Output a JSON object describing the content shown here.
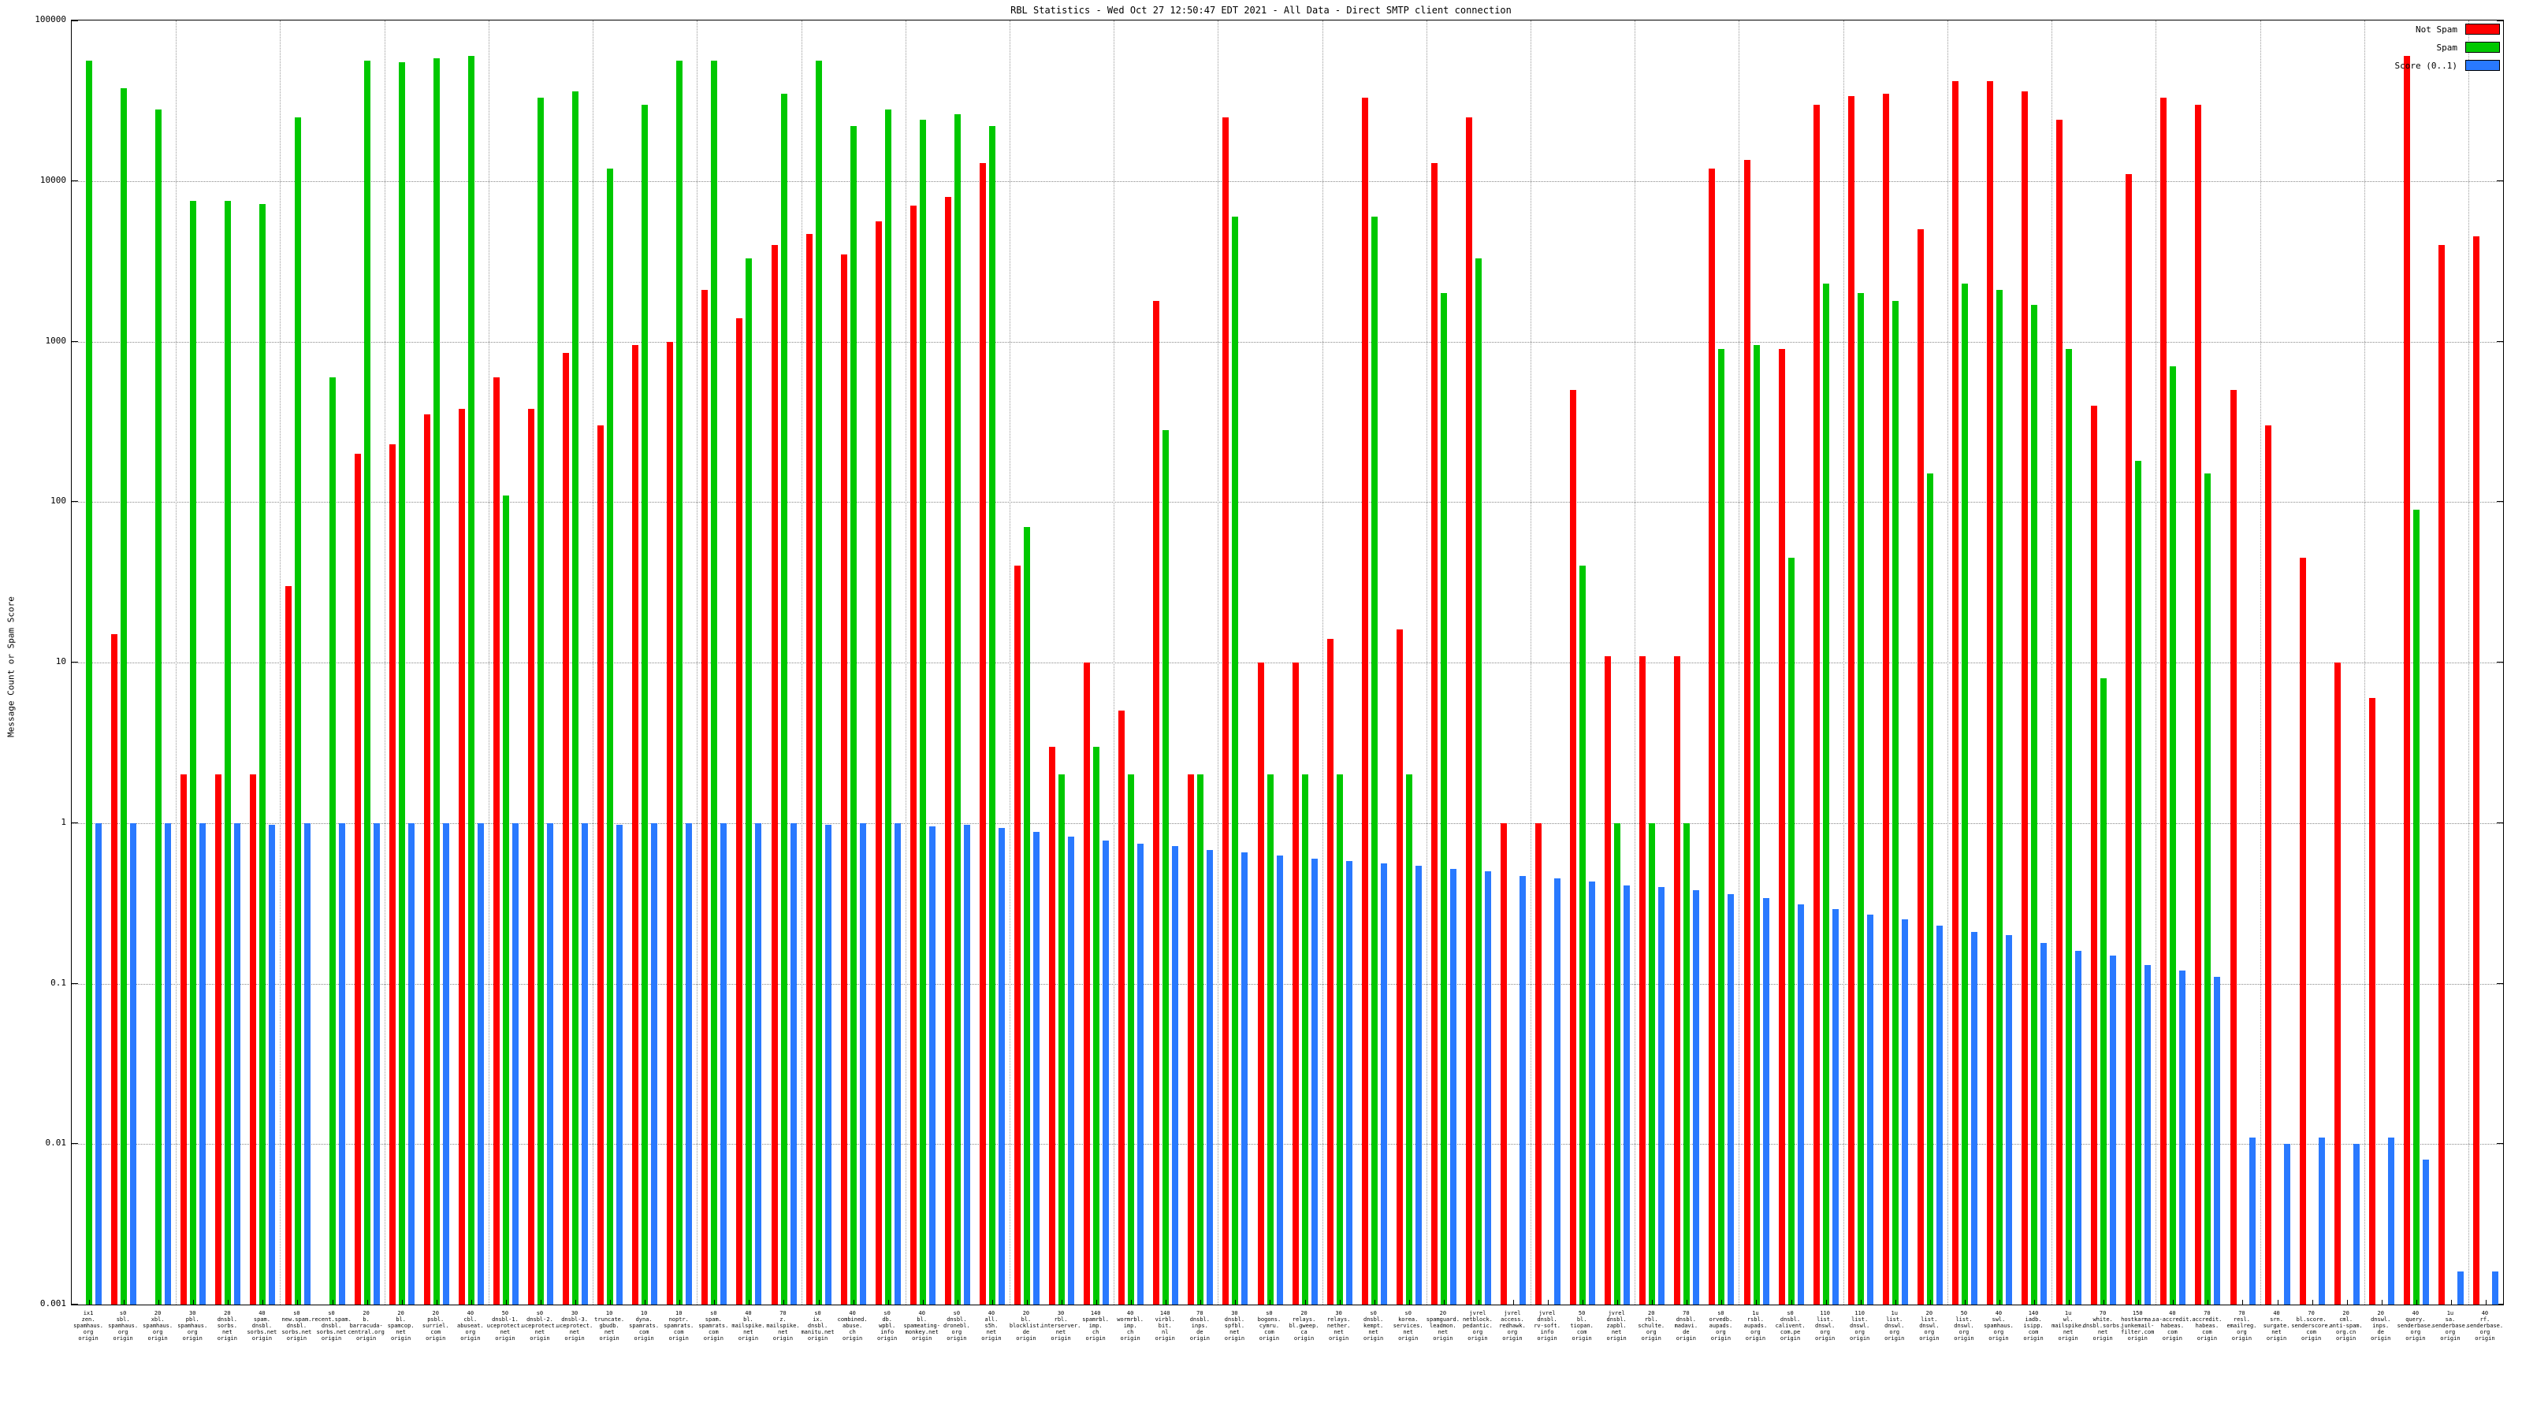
{
  "title": "RBL Statistics - Wed Oct 27 12:50:47 EDT 2021 - All Data - Direct SMTP client connection",
  "ylabel": "Message Count or Spam Score",
  "legend": [
    {
      "label": "Not Spam",
      "color": "#ff0000"
    },
    {
      "label": "Spam",
      "color": "#00c800"
    },
    {
      "label": "Score (0..1)",
      "color": "#2979ff"
    }
  ],
  "chart_data": {
    "type": "bar",
    "title": "RBL Statistics - Wed Oct 27 12:50:47 EDT 2021 - All Data - Direct SMTP client connection",
    "xlabel": "",
    "ylabel": "Message Count or Spam Score",
    "log_scale_y": true,
    "ylim": [
      0.001,
      100000
    ],
    "yticks": [
      "100000",
      "10000",
      "1000",
      "100",
      "10",
      "1",
      "0.1",
      "0.01",
      "0.001"
    ],
    "grid": "dotted",
    "legend_position": "top-right",
    "categories": [
      "ix1\nzen.\nspamhaus.\norg\norigin",
      "s0\nsbl.\nspamhaus.\norg\norigin",
      "20\nxbl.\nspamhaus.\norg\norigin",
      "30\npbl.\nspamhaus.\norg\norigin",
      "20\ndnsbl.\nsorbs.\nnet\norigin",
      "40\nspam.\ndnsbl.\nsorbs.net\norigin",
      "s0\nnew.spam.\ndnsbl.\nsorbs.net\norigin",
      "s0\nrecent.spam.\ndnsbl.\nsorbs.net\norigin",
      "20\nb.\nbarracuda-\ncentral.org\norigin",
      "20\nbl.\nspamcop.\nnet\norigin",
      "20\npsbl.\nsurriel.\ncom\norigin",
      "40\ncbl.\nabuseat.\norg\norigin",
      "50\ndnsbl-1.\nuceprotect.\nnet\norigin",
      "s0\ndnsbl-2.\nuceprotect.\nnet\norigin",
      "30\ndnsbl-3.\nuceprotect.\nnet\norigin",
      "10\ntruncate.\ngbudb.\nnet\norigin",
      "10\ndyna.\nspamrats.\ncom\norigin",
      "10\nnoptr.\nspamrats.\ncom\norigin",
      "s0\nspam.\nspamrats.\ncom\norigin",
      "40\nbl.\nmailspike.\nnet\norigin",
      "70\nz.\nmailspike.\nnet\norigin",
      "s0\nix.\ndnsbl.\nmanitu.net\norigin",
      "40\ncombined.\nabuse.\nch\norigin",
      "s0\ndb.\nwpbl.\ninfo\norigin",
      "40\nbl.\nspameating-\nmonkey.net\norigin",
      "s0\ndnsbl.\ndronebl.\norg\norigin",
      "40\nall.\ns5h.\nnet\norigin",
      "20\nbl.\nblocklist.\nde\norigin",
      "30\nrbl.\ninterserver.\nnet\norigin",
      "140\nspamrbl.\nimp.\nch\norigin",
      "40\nwormrbl.\nimp.\nch\norigin",
      "140\nvirbl.\nbit.\nnl\norigin",
      "70\ndnsbl.\ninps.\nde\norigin",
      "30\ndnsbl.\nspfbl.\nnet\norigin",
      "s0\nbogons.\ncymru.\ncom\norigin",
      "20\nrelays.\nbl.gweep.\nca\norigin",
      "30\nrelays.\nnether.\nnet\norigin",
      "s0\ndnsbl.\nkempt.\nnet\norigin",
      "s0\nkorea.\nservices.\nnet\norigin",
      "20\nspamguard.\nleadmon.\nnet\norigin",
      "jvrel\nnetblock.\npedantic.\norg\norigin",
      "jvrel\naccess.\nredhawk.\norg\norigin",
      "jvrel\ndnsbl.\nrv-soft.\ninfo\norigin",
      "50\nbl.\ntiopan.\ncom\norigin",
      "jvrel\ndnsbl.\nzapbl.\nnet\norigin",
      "20\nrbl.\nschulte.\norg\norigin",
      "70\ndnsbl.\nmadavi.\nde\norigin",
      "s0\norvedb.\naupads.\norg\norigin",
      "1u\nrsbl.\naupads.\norg\norigin",
      "s0\ndnsbl.\ncalivent.\ncom.pe\norigin",
      "110\nlist.\ndnswl.\norg\norigin",
      "110\nlist.\ndnswl.\norg\norigin",
      "1u\nlist.\ndnswl.\norg\norigin",
      "20\nlist.\ndnswl.\norg\norigin",
      "50\nlist.\ndnswl.\norg\norigin",
      "40\nswl.\nspamhaus.\norg\norigin",
      "140\niadb.\nisipp.\ncom\norigin",
      "1u\nwl.\nmailspike.\nnet\norigin",
      "70\nwhite.\ndnsbl.sorbs.\nnet\norigin",
      "150\nhostkarma.\njunkemail-\nfilter.com\norigin",
      "40\nsa-accredit.\nhabeas.\ncom\norigin",
      "70\naccredit.\nhabeas.\ncom\norigin",
      "70\nresl.\nemailreg.\norg\norigin",
      "40\nsrn.\nsurgate.\nnet\norigin",
      "70\nbl.score.\nsenderscore.\ncom\norigin",
      "20\ncml.\nanti-spam.\norg.cn\norigin",
      "20\ndnswl.\ninps.\nde\norigin",
      "40\nquery.\nsenderbase.\norg\norigin",
      "1u\nsa.\nsenderbase.\norg\norigin",
      "40\nrf.\nsenderbase.\norg\norigin"
    ],
    "series": [
      {
        "name": "Not Spam",
        "color": "#ff0000",
        "values": [
          0,
          15,
          0,
          2,
          2,
          2,
          30,
          0,
          200,
          230,
          350,
          380,
          600,
          380,
          850,
          300,
          950,
          1000,
          2100,
          1400,
          4000,
          4700,
          3500,
          5600,
          7000,
          8000,
          13000,
          40,
          3,
          10,
          5,
          1800,
          2,
          25000,
          10,
          10,
          14,
          33000,
          16,
          13000,
          25000,
          1,
          1,
          500,
          11,
          11,
          11,
          12000,
          13500,
          900,
          30000,
          34000,
          35000,
          5000,
          42000,
          42000,
          36000,
          24000,
          400,
          11000,
          33000,
          30000,
          500,
          300,
          45,
          10,
          6,
          60000,
          4000,
          4500
        ]
      },
      {
        "name": "Spam",
        "color": "#00c800",
        "values": [
          56000,
          38000,
          28000,
          7500,
          7500,
          7200,
          25000,
          600,
          56000,
          55000,
          58000,
          60000,
          110,
          33000,
          36000,
          12000,
          30000,
          56000,
          56000,
          3300,
          35000,
          56000,
          22000,
          28000,
          24000,
          26000,
          22000,
          70,
          2,
          3,
          2,
          280,
          2,
          6000,
          2,
          2,
          2,
          6000,
          2,
          2000,
          3300,
          0,
          0,
          40,
          1,
          1,
          1,
          900,
          950,
          45,
          2300,
          2000,
          1800,
          150,
          2300,
          2100,
          1700,
          900,
          8,
          180,
          700,
          150,
          0,
          0,
          0,
          0,
          0,
          90,
          0,
          0
        ]
      },
      {
        "name": "Score (0..1)",
        "color": "#2979ff",
        "values": [
          1,
          1,
          1,
          1,
          1,
          0.98,
          1,
          1,
          1,
          1,
          1,
          1,
          1,
          1,
          1,
          0.98,
          1,
          1,
          1,
          1,
          1,
          0.98,
          1,
          1,
          0.95,
          0.97,
          0.93,
          0.88,
          0.82,
          0.78,
          0.74,
          0.72,
          0.68,
          0.66,
          0.63,
          0.6,
          0.58,
          0.56,
          0.54,
          0.52,
          0.5,
          0.47,
          0.45,
          0.43,
          0.41,
          0.4,
          0.38,
          0.36,
          0.34,
          0.31,
          0.29,
          0.27,
          0.25,
          0.23,
          0.21,
          0.2,
          0.18,
          0.16,
          0.15,
          0.13,
          0.12,
          0.11,
          0.011,
          0.01,
          0.011,
          0.01,
          0.011,
          0.008,
          0.0016,
          0.0016
        ]
      }
    ]
  }
}
